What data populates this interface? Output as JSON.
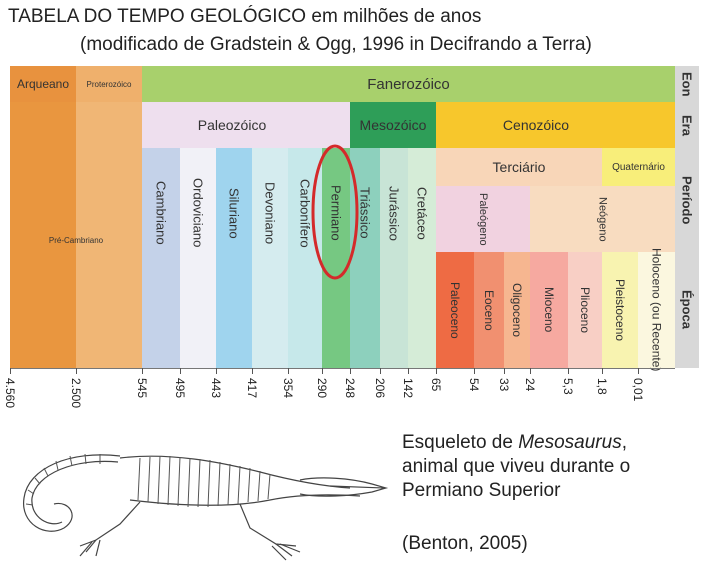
{
  "title": {
    "line1_main": "TABELA DO TEMPO GEOLÓGICO",
    "line1_rest": "em milhões de anos",
    "line2": "(modificado de Gradstein & Ogg, 1996 in Decifrando a Terra)"
  },
  "row_labels": {
    "eon": "Eon",
    "era": "Era",
    "periodo": "Período",
    "epoca": "Época"
  },
  "eons": {
    "arqueano": "Arqueano",
    "proterozoico": "Proterozóico",
    "fanerozoico": "Fanerozóico"
  },
  "eras": {
    "paleozoico": "Paleozóico",
    "mesozoico": "Mesozóico",
    "cenozoico": "Cenozóico"
  },
  "precambrian": "Pré-Cambriano",
  "subperiods": {
    "terciario": "Terciário",
    "quaternario": "Quaternário",
    "paleogeno": "Paleógeno",
    "neogeno": "Neógeno"
  },
  "periods": [
    {
      "name": "Cambriano"
    },
    {
      "name": "Ordoviciano"
    },
    {
      "name": "Siluriano"
    },
    {
      "name": "Devoniano"
    },
    {
      "name": "Carbonífero"
    },
    {
      "name": "Permiano"
    },
    {
      "name": "Triássico"
    },
    {
      "name": "Jurássico"
    },
    {
      "name": "Cretáceo"
    }
  ],
  "epochs": [
    {
      "name": "Paleoceno"
    },
    {
      "name": "Eoceno"
    },
    {
      "name": "Oligoceno"
    },
    {
      "name": "Mioceno"
    },
    {
      "name": "Plioceno"
    },
    {
      "name": "Pleistoceno"
    },
    {
      "name": "Holoceno (ou Recente)"
    }
  ],
  "ticks": [
    "4.560",
    "2.500",
    "545",
    "495",
    "443",
    "417",
    "354",
    "290",
    "248",
    "206",
    "142",
    "65",
    "54",
    "33",
    "24",
    "5,3",
    "1,8",
    "0,01"
  ],
  "caption": {
    "line1_pre": "Esqueleto de ",
    "line1_italic": "Mesosaurus",
    "line1_post": ",",
    "line2": "animal que viveu durante o",
    "line3": "Permiano Superior",
    "source": "(Benton, 2005)"
  },
  "colors": {
    "highlight_circle": "#d42a2a"
  }
}
